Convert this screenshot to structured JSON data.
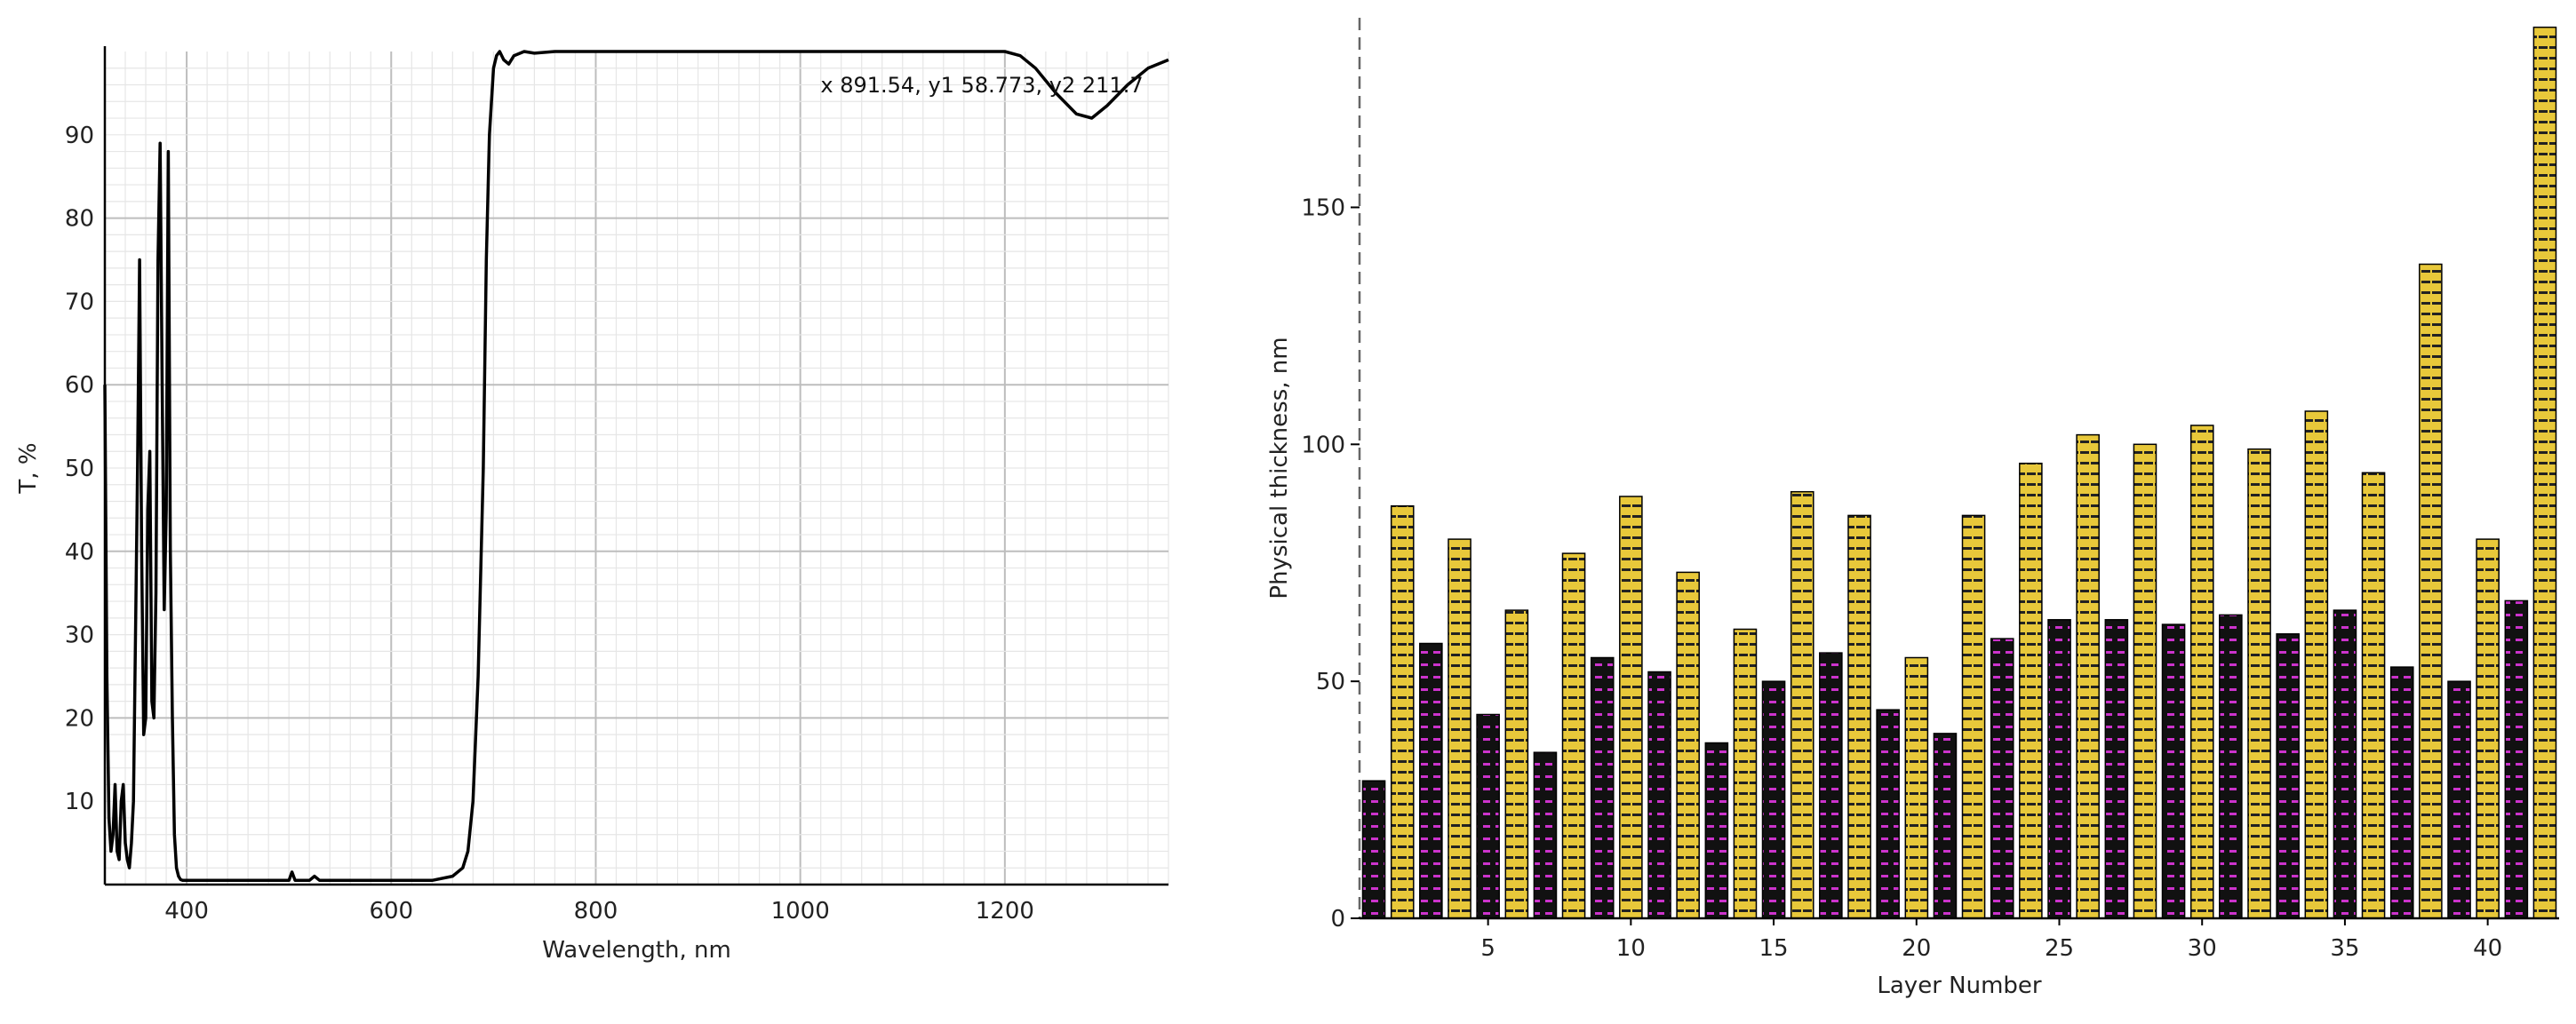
{
  "chart_data": [
    {
      "type": "line",
      "xlabel": "Wavelength, nm",
      "ylabel": "T, %",
      "xlim": [
        320,
        1360
      ],
      "ylim": [
        0,
        100
      ],
      "xticks": [
        400,
        600,
        800,
        1000,
        1200
      ],
      "yticks": [
        10,
        20,
        30,
        40,
        50,
        60,
        70,
        80,
        90
      ],
      "grid": true,
      "readout": "x  891.54, y1  58.773, y2  211.7",
      "series": [
        {
          "color": "#000000",
          "x": [
            320,
            322,
            324,
            326,
            328,
            330,
            332,
            334,
            336,
            338,
            340,
            342,
            344,
            346,
            348,
            350,
            352,
            354,
            356,
            358,
            360,
            362,
            364,
            366,
            368,
            370,
            372,
            374,
            376,
            378,
            380,
            382,
            384,
            386,
            388,
            390,
            392,
            394,
            396,
            398,
            400,
            420,
            450,
            480,
            500,
            503,
            506,
            520,
            525,
            530,
            560,
            600,
            640,
            660,
            670,
            675,
            680,
            685,
            690,
            693,
            696,
            700,
            703,
            706,
            710,
            715,
            720,
            730,
            740,
            760,
            800,
            850,
            900,
            950,
            1000,
            1050,
            1100,
            1150,
            1200,
            1215,
            1230,
            1250,
            1270,
            1285,
            1300,
            1320,
            1340,
            1360
          ],
          "y": [
            60,
            25,
            8,
            4,
            6,
            12,
            4,
            3,
            10,
            12,
            5,
            3,
            2,
            5,
            10,
            30,
            50,
            75,
            40,
            18,
            20,
            45,
            52,
            22,
            20,
            35,
            75,
            89,
            60,
            33,
            45,
            88,
            40,
            20,
            6,
            2,
            1,
            0.6,
            0.5,
            0.5,
            0.5,
            0.5,
            0.5,
            0.5,
            0.5,
            1.5,
            0.5,
            0.5,
            1,
            0.5,
            0.5,
            0.5,
            0.5,
            1,
            2,
            4,
            10,
            25,
            50,
            75,
            90,
            98,
            99.5,
            100,
            99,
            98.5,
            99.5,
            100,
            99.8,
            100,
            100,
            100,
            100,
            100,
            100,
            100,
            100,
            100,
            100,
            99.5,
            98,
            95,
            92.5,
            92,
            93.5,
            96,
            98,
            99
          ]
        }
      ]
    },
    {
      "type": "bar",
      "xlabel": "Layer Number",
      "ylabel": "Physical thickness, nm",
      "xlim": [
        0.5,
        42.5
      ],
      "ylim": [
        0,
        190
      ],
      "xticks": [
        5,
        10,
        15,
        20,
        25,
        30,
        35,
        40
      ],
      "yticks": [
        0,
        50,
        100,
        150
      ],
      "grid": false,
      "colors": {
        "odd": "#cc33cc",
        "even": "#e8c83a",
        "dark": "#111111",
        "border": "#000000"
      },
      "categories": [
        1,
        2,
        3,
        4,
        5,
        6,
        7,
        8,
        9,
        10,
        11,
        12,
        13,
        14,
        15,
        16,
        17,
        18,
        19,
        20,
        21,
        22,
        23,
        24,
        25,
        26,
        27,
        28,
        29,
        30,
        31,
        32,
        33,
        34,
        35,
        36,
        37,
        38,
        39,
        40,
        41,
        42
      ],
      "values": [
        29,
        87,
        58,
        80,
        43,
        65,
        35,
        77,
        55,
        89,
        52,
        73,
        37,
        61,
        50,
        90,
        56,
        85,
        44,
        55,
        39,
        85,
        59,
        96,
        63,
        102,
        63,
        100,
        62,
        104,
        64,
        99,
        60,
        107,
        65,
        94,
        53,
        138,
        50,
        80,
        67,
        188
      ]
    }
  ]
}
